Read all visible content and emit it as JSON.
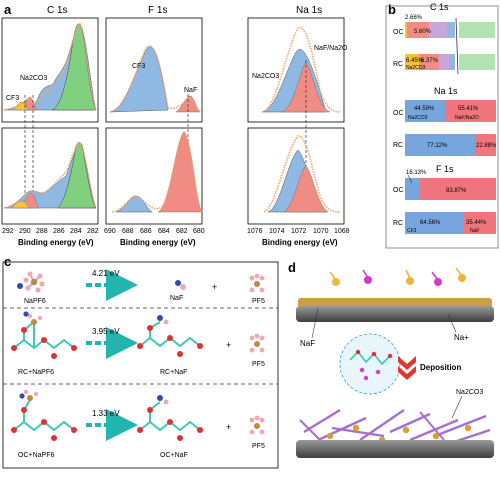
{
  "colors": {
    "c_green": "#7fd17f",
    "c_blue": "#8fb8e3",
    "c_salmon": "#f08c84",
    "c_yellow": "#f5c23c",
    "c_purple": "#c8a8dc",
    "fit": "#f2a36b",
    "teal": "#22b5b0",
    "orange_atom": "#f3b33a",
    "magenta_atom": "#d23bc8",
    "purple_stick": "#a66ed0",
    "gray": "#5b5b5b"
  },
  "panel_a": {
    "label": "a",
    "titles": {
      "c1s": "C 1s",
      "f1s": "F 1s",
      "na1s": "Na 1s"
    },
    "xlabel": "Binding energy (eV)",
    "c_ticks": [
      "292",
      "290",
      "288",
      "286",
      "284",
      "282"
    ],
    "f_ticks": [
      "690",
      "688",
      "686",
      "684",
      "682",
      "680"
    ],
    "na_ticks": [
      "1076",
      "1074",
      "1072",
      "1070",
      "1068"
    ],
    "peaks": {
      "cf3_c": "CF3",
      "na2co3_c": "Na2CO3",
      "cf3_f": "CF3",
      "naf_f": "NaF",
      "na2co3_na": "Na2CO3",
      "naf_na2o": "NaF/Na2O"
    }
  },
  "panel_b": {
    "label": "b",
    "c1s": {
      "title": "C 1s",
      "rows": [
        {
          "name": "OC",
          "v1": "2.66%",
          "v2": "5.60%"
        },
        {
          "name": "RC",
          "v1": "6.45%",
          "v2": "6.37%",
          "sub": "Na2CO3"
        }
      ]
    },
    "na1s": {
      "title": "Na 1s",
      "rows": [
        {
          "name": "OC",
          "v1": "44.59%",
          "v2": "55.41%",
          "sub1": "Na2CO3",
          "sub2": "NaF/Na2O"
        },
        {
          "name": "RC",
          "v1": "77.12%",
          "v2": "22.88%"
        }
      ]
    },
    "f1s": {
      "title": "F 1s",
      "rows": [
        {
          "name": "OC",
          "v1": "16.13%",
          "v2": "83.87%"
        },
        {
          "name": "RC",
          "v1": "64.56%",
          "v2": "35.44%",
          "sub1": "CF3",
          "sub2": "NaF"
        }
      ]
    }
  },
  "panel_c": {
    "label": "c",
    "rows": [
      {
        "reactant": "NaPF6",
        "energy": "4.21 eV",
        "product": "NaF",
        "plus": "+",
        "byproduct": "PF5"
      },
      {
        "reactant": "RC+NaPF6",
        "energy": "3.95 eV",
        "product": "RC+NaF",
        "plus": "+",
        "byproduct": "PF5"
      },
      {
        "reactant": "OC+NaPF6",
        "energy": "1.33 eV",
        "product": "OC+NaF",
        "plus": "+",
        "byproduct": "PF5"
      }
    ]
  },
  "panel_d": {
    "label": "d",
    "naf": "NaF",
    "na_ion": "Na+",
    "deposition": "Deposition",
    "na2co3": "Na2CO3"
  }
}
